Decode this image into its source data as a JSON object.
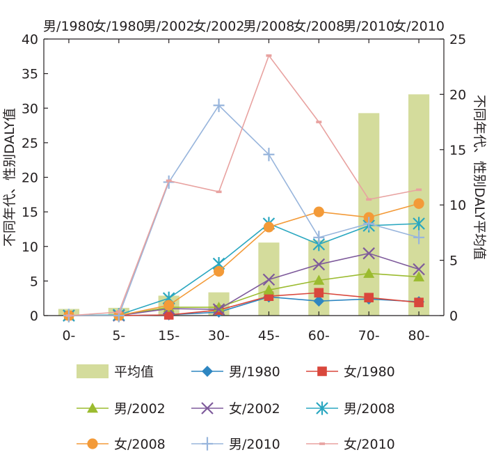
{
  "chart_data": {
    "type": "bar+line",
    "categories": [
      "0-",
      "5-",
      "15-",
      "30-",
      "45-",
      "60-",
      "70-",
      "80-"
    ],
    "top_labels": [
      "男/1980",
      "女/1980",
      "男/2002",
      "女/2002",
      "男/2008",
      "女/2008",
      "男/2010",
      "女/2010"
    ],
    "ylabel_left": "不同年代、性别DALY值",
    "ylabel_right": "不同年代、性别DALY平均值",
    "ylim_left": [
      0,
      40
    ],
    "yticks_left": [
      0,
      5,
      10,
      15,
      20,
      25,
      30,
      35,
      40
    ],
    "ylim_right": [
      0,
      25
    ],
    "yticks_right": [
      0,
      5,
      10,
      15,
      20,
      25
    ],
    "grid": false,
    "legend_position": "bottom",
    "bar_series": {
      "name": "平均值",
      "axis": "right",
      "color": "#d4dc9c",
      "values": [
        0.6,
        0.7,
        1.8,
        2.1,
        6.6,
        6.8,
        18.3,
        20.0
      ]
    },
    "series": [
      {
        "name": "男/1980",
        "marker": "diamond",
        "color": "#2e86c1",
        "values": [
          0.0,
          0.0,
          0.1,
          0.5,
          2.7,
          2.1,
          2.4,
          2.0
        ]
      },
      {
        "name": "女/1980",
        "marker": "square",
        "color": "#d9473c",
        "values": [
          0.0,
          0.0,
          0.1,
          0.8,
          2.8,
          3.3,
          2.6,
          1.9
        ]
      },
      {
        "name": "男/2002",
        "marker": "triangle",
        "color": "#9bbb2f",
        "values": [
          0.0,
          0.0,
          1.2,
          1.2,
          3.7,
          5.1,
          6.1,
          5.6
        ]
      },
      {
        "name": "女/2002",
        "marker": "x",
        "color": "#7e5a9b",
        "values": [
          0.0,
          0.0,
          1.0,
          0.9,
          5.2,
          7.4,
          9.0,
          6.7
        ]
      },
      {
        "name": "男/2008",
        "marker": "asterisk",
        "color": "#2aa7c0",
        "values": [
          0.0,
          0.1,
          2.5,
          7.5,
          13.3,
          10.3,
          13.0,
          13.3
        ]
      },
      {
        "name": "女/2008",
        "marker": "circle",
        "color": "#f39a38",
        "values": [
          0.0,
          0.0,
          1.5,
          6.4,
          12.8,
          15.0,
          14.2,
          16.2
        ]
      },
      {
        "name": "男/2010",
        "marker": "plus",
        "color": "#98b5dc",
        "values": [
          0.0,
          0.0,
          19.3,
          30.4,
          23.3,
          11.3,
          13.3,
          11.3
        ]
      },
      {
        "name": "女/2010",
        "marker": "dash",
        "color": "#e8a2a0",
        "values": [
          0.0,
          0.5,
          19.5,
          17.9,
          37.6,
          28.0,
          16.8,
          18.2
        ]
      }
    ]
  }
}
